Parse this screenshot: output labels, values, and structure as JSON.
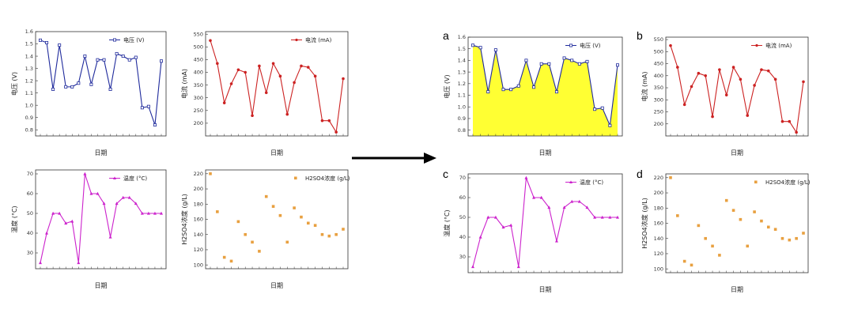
{
  "panel_letters": [
    "a",
    "b",
    "c",
    "d"
  ],
  "chart_data": [
    {
      "id": "voltage-left",
      "type": "line",
      "xlabel": "日期",
      "ylabel": "电压 (V)",
      "legend": "电压 (V)",
      "legend_position": "top-right",
      "ylim": [
        0.75,
        1.6
      ],
      "yticks": [
        "1.6",
        "1.5",
        "1.4",
        "1.3",
        "1.2",
        "1.1",
        "1.0",
        "0.9",
        "0.8"
      ],
      "color": "#1f2a9c",
      "marker": "square",
      "fill": false,
      "values": [
        1.53,
        1.51,
        1.13,
        1.49,
        1.15,
        1.15,
        1.18,
        1.4,
        1.17,
        1.37,
        1.37,
        1.13,
        1.42,
        1.4,
        1.37,
        1.39,
        0.98,
        0.99,
        0.84,
        1.36
      ]
    },
    {
      "id": "current-left",
      "type": "line",
      "xlabel": "日期",
      "ylabel": "电流 (mA)",
      "legend": "电流 (mA)",
      "legend_position": "top-right",
      "ylim": [
        150,
        560
      ],
      "yticks": [
        "550",
        "500",
        "450",
        "400",
        "350",
        "300",
        "250",
        "200"
      ],
      "color": "#cc2222",
      "marker": "circle",
      "fill": false,
      "values": [
        525,
        435,
        280,
        355,
        410,
        400,
        230,
        425,
        320,
        435,
        385,
        235,
        360,
        425,
        420,
        385,
        210,
        210,
        165,
        375
      ]
    },
    {
      "id": "temperature-left",
      "type": "line",
      "xlabel": "日期",
      "ylabel": "温度 (°C)",
      "legend": "温度 (°C)",
      "legend_position": "top-right",
      "ylim": [
        22,
        72
      ],
      "yticks": [
        "70",
        "60",
        "50",
        "40",
        "30"
      ],
      "color": "#cc22cc",
      "marker": "triangle",
      "fill": false,
      "values": [
        25,
        40,
        50,
        50,
        45,
        46,
        25,
        70,
        60,
        60,
        55,
        38,
        55,
        58,
        58,
        55,
        50,
        50,
        50,
        50
      ]
    },
    {
      "id": "h2so4-left",
      "type": "scatter",
      "xlabel": "日期",
      "ylabel": "H2SO4浓度 (g/L)",
      "legend": "H2SO4浓度 (g/L)",
      "legend_position": "top-right",
      "ylim": [
        95,
        225
      ],
      "yticks": [
        "220",
        "200",
        "180",
        "160",
        "140",
        "120",
        "100"
      ],
      "color": "#e8a040",
      "marker": "square",
      "values": [
        220,
        170,
        110,
        105,
        157,
        140,
        130,
        118,
        190,
        177,
        165,
        130,
        175,
        163,
        155,
        152,
        140,
        138,
        140,
        147
      ]
    },
    {
      "id": "voltage-a",
      "type": "area",
      "xlabel": "日期",
      "ylabel": "电压 (V)",
      "legend": "电压 (V)",
      "legend_position": "top-right",
      "ylim": [
        0.75,
        1.6
      ],
      "yticks": [
        "1.6",
        "1.5",
        "1.4",
        "1.3",
        "1.2",
        "1.1",
        "1.0",
        "0.9",
        "0.8"
      ],
      "color": "#1f2a9c",
      "marker": "square",
      "fill": true,
      "fill_color": "#ffff33",
      "values": [
        1.53,
        1.51,
        1.13,
        1.49,
        1.15,
        1.15,
        1.18,
        1.4,
        1.17,
        1.37,
        1.37,
        1.13,
        1.42,
        1.4,
        1.37,
        1.39,
        0.98,
        0.99,
        0.84,
        1.36
      ]
    },
    {
      "id": "current-b",
      "type": "line",
      "xlabel": "日期",
      "ylabel": "电流 (mA)",
      "legend": "电流 (mA)",
      "legend_position": "top-right",
      "ylim": [
        150,
        560
      ],
      "yticks": [
        "550",
        "500",
        "450",
        "400",
        "350",
        "300",
        "250",
        "200"
      ],
      "color": "#cc2222",
      "marker": "circle",
      "fill": false,
      "values": [
        525,
        435,
        280,
        355,
        410,
        400,
        230,
        425,
        320,
        435,
        385,
        235,
        360,
        425,
        420,
        385,
        210,
        210,
        165,
        375
      ]
    },
    {
      "id": "temperature-c",
      "type": "line",
      "xlabel": "日期",
      "ylabel": "温度 (°C)",
      "legend": "温度 (°C)",
      "legend_position": "top-right",
      "ylim": [
        22,
        72
      ],
      "yticks": [
        "70",
        "60",
        "50",
        "40",
        "30"
      ],
      "color": "#cc22cc",
      "marker": "triangle",
      "fill": false,
      "values": [
        25,
        40,
        50,
        50,
        45,
        46,
        25,
        70,
        60,
        60,
        55,
        38,
        55,
        58,
        58,
        55,
        50,
        50,
        50,
        50
      ]
    },
    {
      "id": "h2so4-d",
      "type": "scatter",
      "xlabel": "日期",
      "ylabel": "H2SO4浓度 (g/L)",
      "legend": "H2SO4浓度 (g/L)",
      "legend_position": "top-right",
      "ylim": [
        95,
        225
      ],
      "yticks": [
        "220",
        "200",
        "180",
        "160",
        "140",
        "120",
        "100"
      ],
      "color": "#e8a040",
      "marker": "square",
      "values": [
        220,
        170,
        110,
        105,
        157,
        140,
        130,
        118,
        190,
        177,
        165,
        130,
        175,
        163,
        155,
        152,
        140,
        138,
        140,
        147
      ]
    }
  ]
}
